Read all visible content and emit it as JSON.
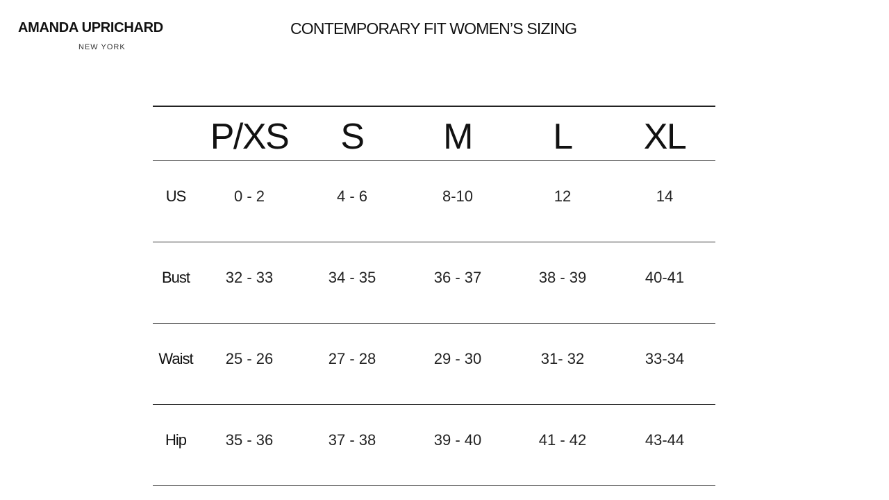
{
  "brand": {
    "name": "AMANDA UPRICHARD",
    "city": "NEW YORK"
  },
  "title": "CONTEMPORARY FIT WOMEN’S SIZING",
  "table": {
    "columns": [
      "",
      "P/XS",
      "S",
      "M",
      "L",
      "XL"
    ],
    "rows": [
      {
        "label": "US",
        "values": [
          "0 - 2",
          "4 - 6",
          "8-10",
          "12",
          "14"
        ]
      },
      {
        "label": "Bust",
        "values": [
          "32 - 33",
          "34 - 35",
          "36 - 37",
          "38 - 39",
          "40-41"
        ]
      },
      {
        "label": "Waist",
        "values": [
          "25 - 26",
          "27 - 28",
          "29 - 30",
          "31- 32",
          "33-34"
        ]
      },
      {
        "label": "Hip",
        "values": [
          "35 - 36",
          "37  - 38",
          "39 - 40",
          "41 - 42",
          "43-44"
        ]
      }
    ]
  }
}
